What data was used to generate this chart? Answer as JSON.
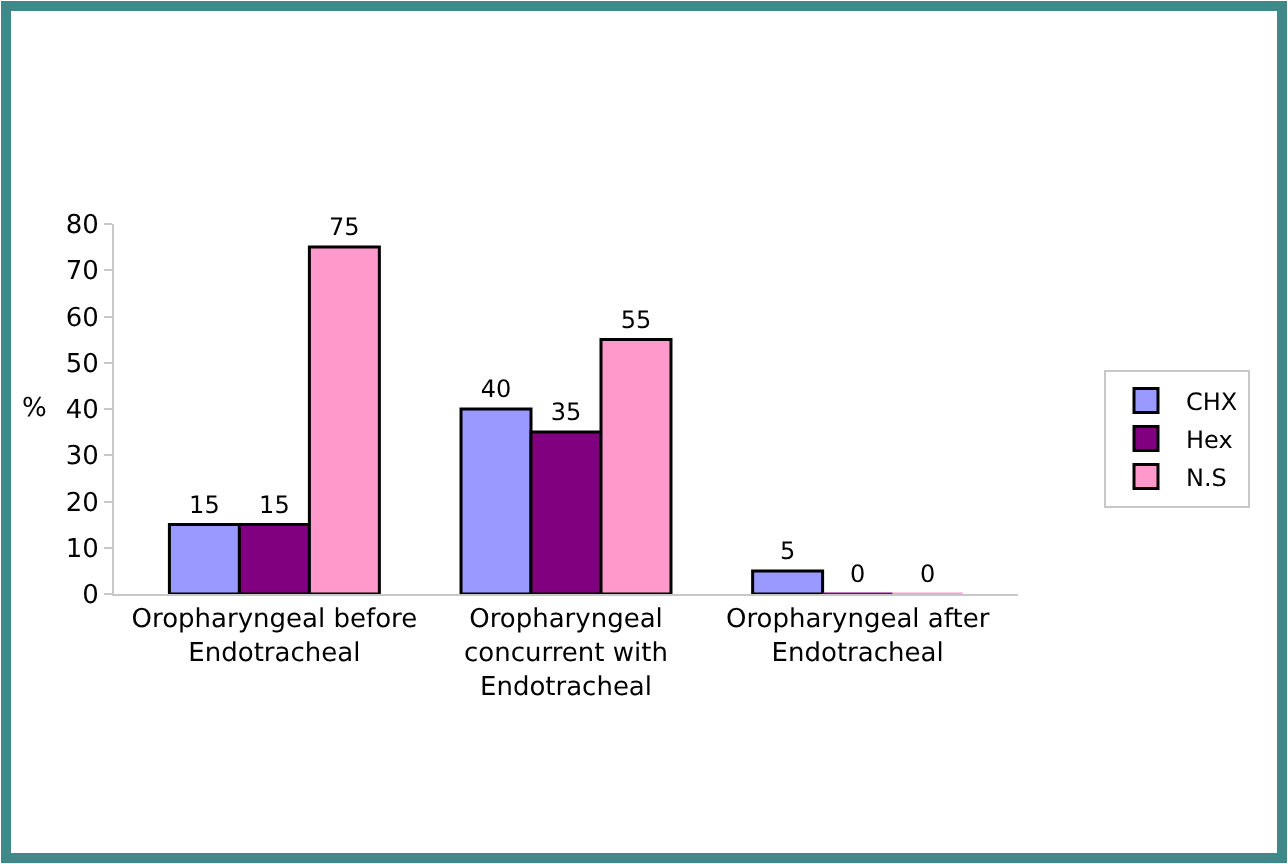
{
  "chart_data": {
    "type": "bar",
    "categories": [
      "Oropharyngeal before\nEndotracheal",
      "Oropharyngeal\nconcurrent with\nEndotracheal",
      "Oropharyngeal after\nEndotracheal"
    ],
    "series": [
      {
        "name": "CHX",
        "color": "#9999ff",
        "values": [
          15,
          40,
          5
        ]
      },
      {
        "name": "Hex",
        "color": "#800080",
        "values": [
          15,
          35,
          0
        ]
      },
      {
        "name": "N.S",
        "color": "#ff99cc",
        "values": [
          75,
          55,
          0
        ]
      }
    ],
    "ylabel": "%",
    "ylim": [
      0,
      80
    ],
    "yticks": [
      0,
      10,
      20,
      30,
      40,
      50,
      60,
      70,
      80
    ],
    "data_labels": true,
    "legend": "right",
    "grid": false
  }
}
